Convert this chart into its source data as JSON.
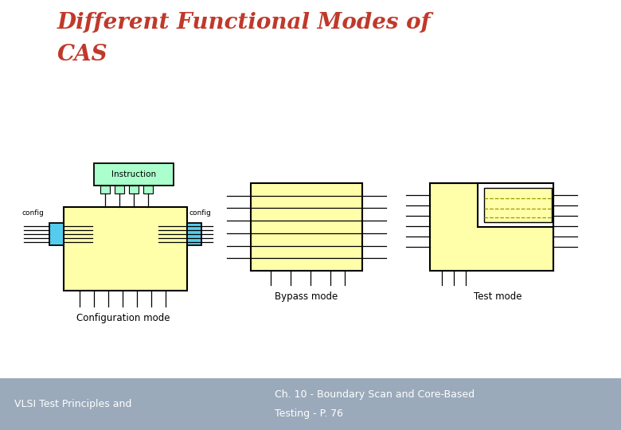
{
  "title_line1": "Different Functional Modes of",
  "title_line2": "CAS",
  "title_color": "#C0392B",
  "title_fontsize": 20,
  "bg_color": "#FFFFFF",
  "footer_bg": "#8899CC",
  "footer_left": "VLSI Test Principles and",
  "footer_right_line1": "Ch. 10 - Boundary Scan and Core-Based",
  "footer_right_line2": "Testing - P. 76",
  "yellow_fill": "#FFFFAA",
  "green_fill": "#AAFFCC",
  "cyan_fill": "#55CCEE",
  "black": "#000000",
  "white": "#FFFFFF",
  "dashed_color": "#999900",
  "lw": 1.3
}
